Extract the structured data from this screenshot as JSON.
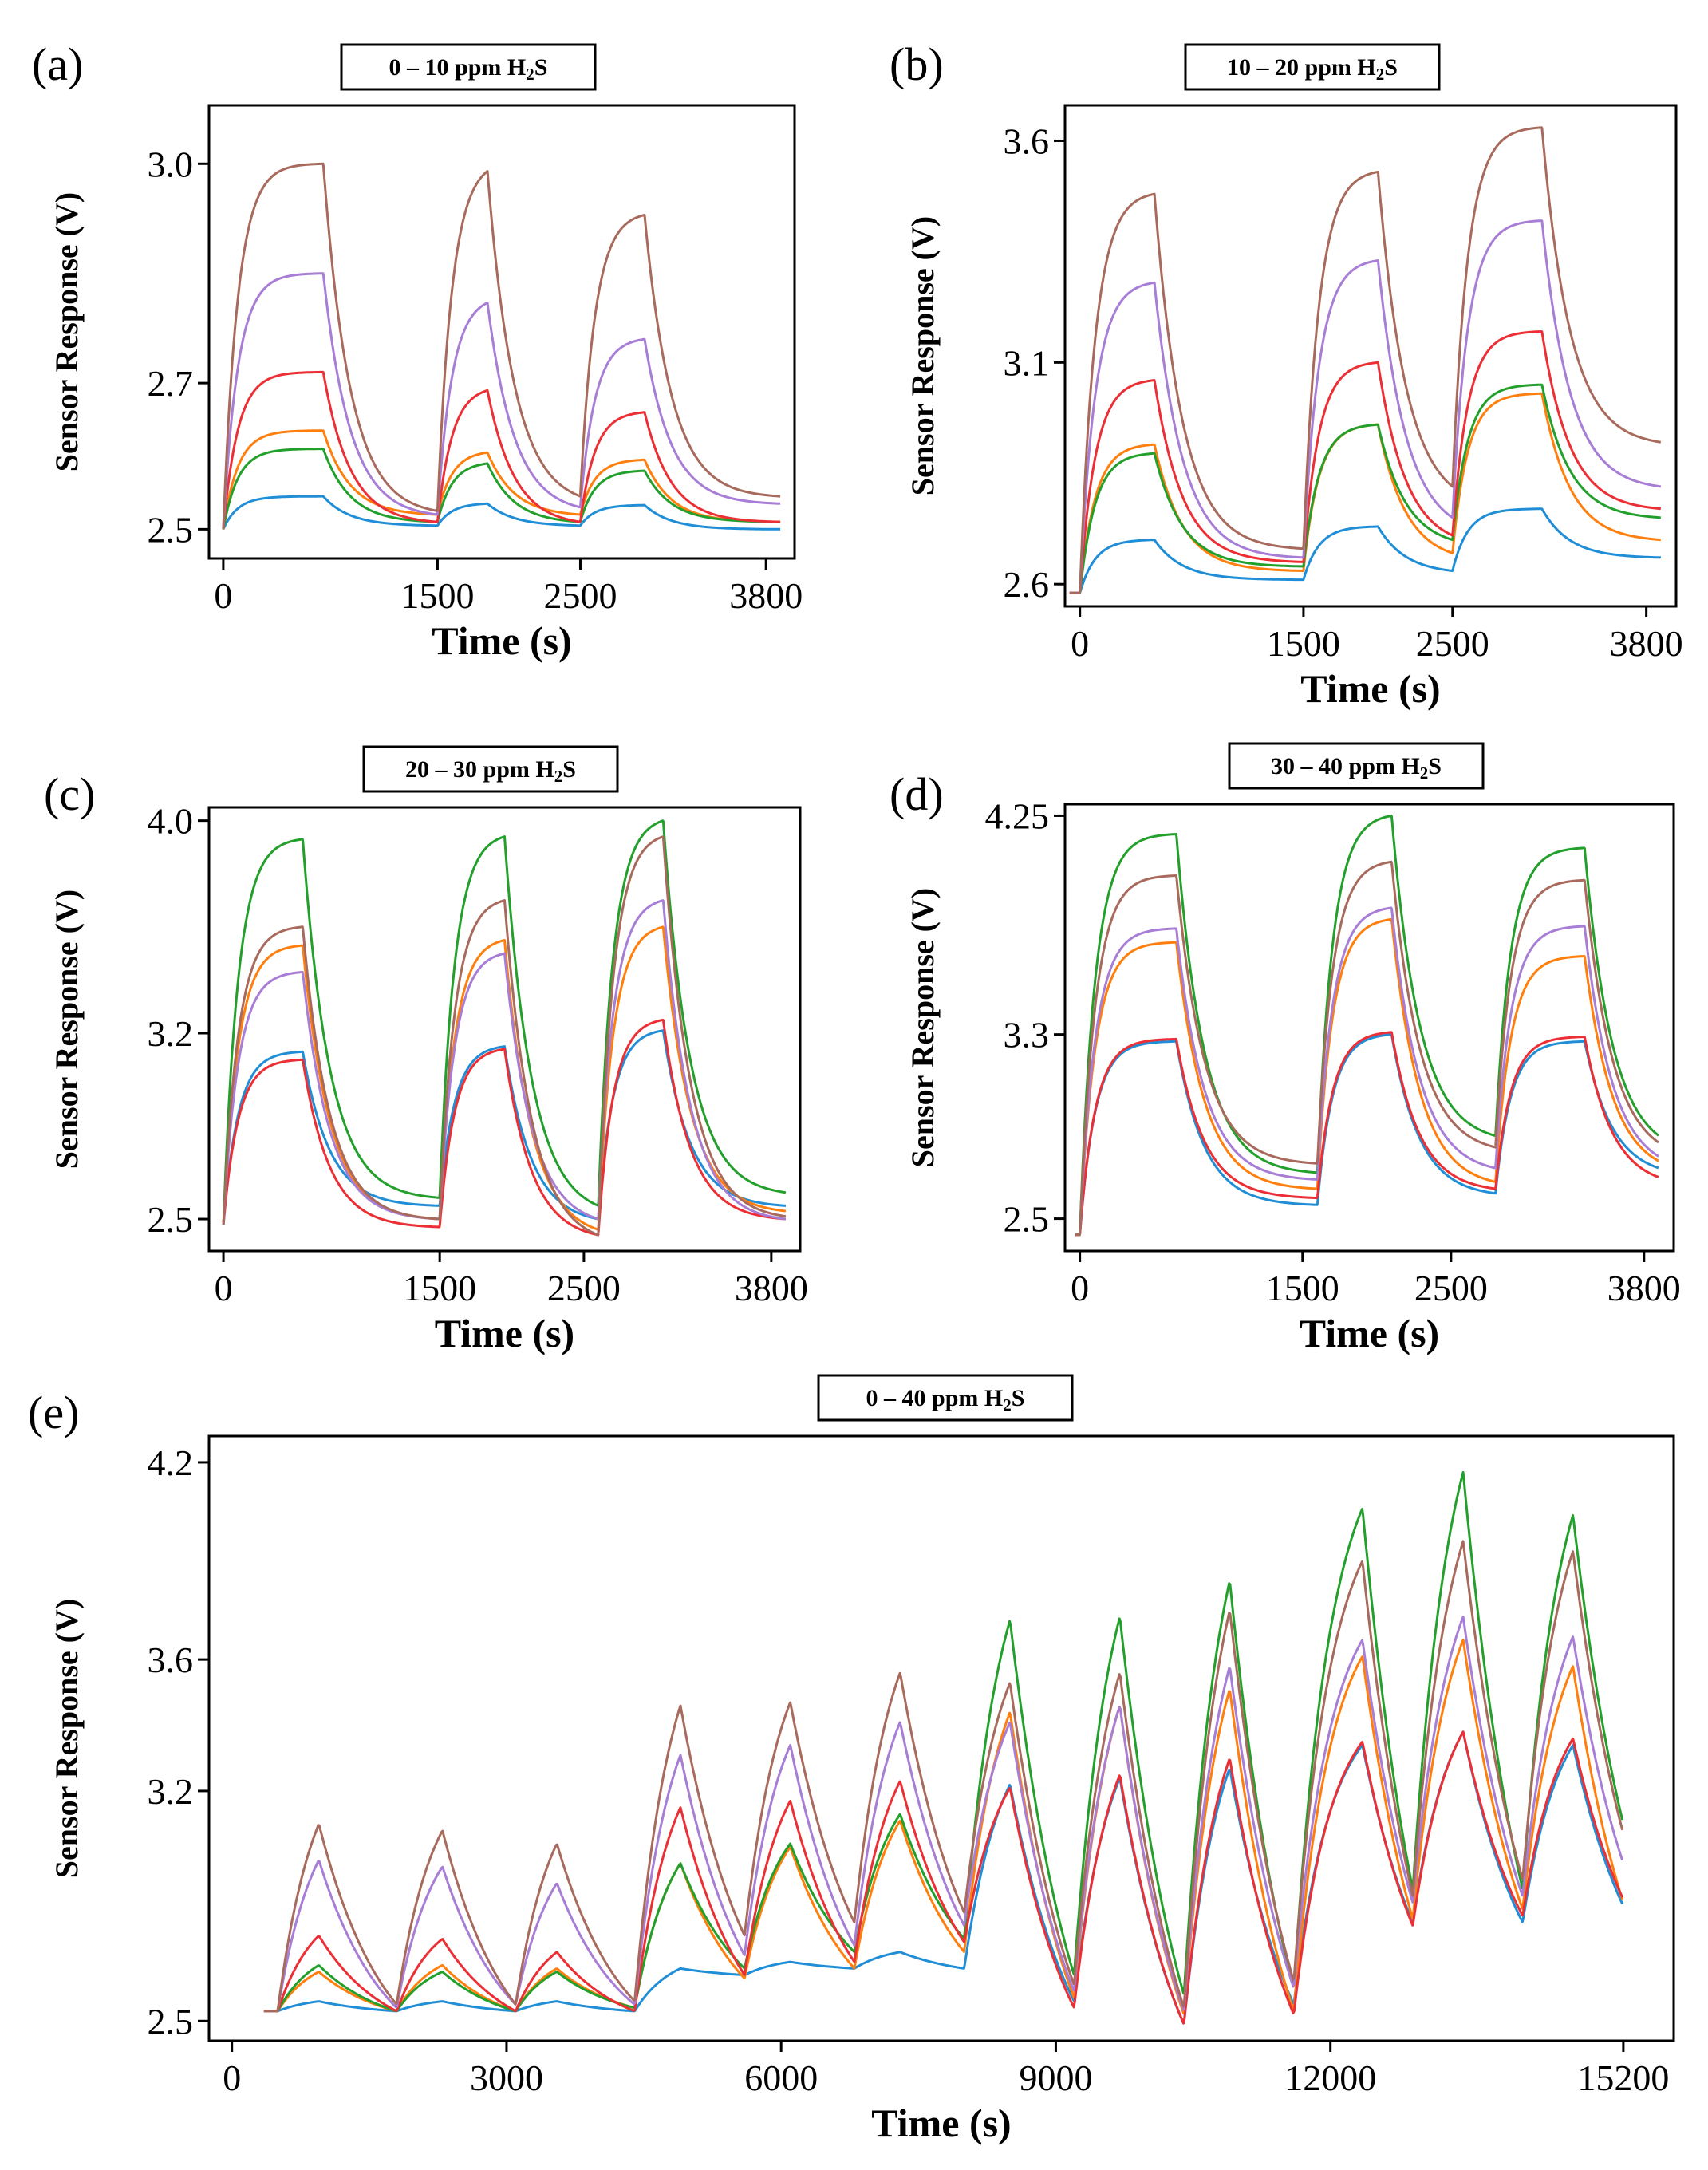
{
  "figure": {
    "palette": {
      "blue": "#1f8ed6",
      "orange": "#ff7f0e",
      "green": "#23a02c",
      "red": "#ec2f35",
      "purple": "#a77dd6",
      "brown": "#a86a5c"
    },
    "series_order": [
      "blue",
      "orange",
      "green",
      "red",
      "purple",
      "brown"
    ]
  },
  "chart_data": [
    {
      "id": "a",
      "panel_label": "(a)",
      "type": "line",
      "title_prefix": "0 – 10 ppm H",
      "title_sub": "2",
      "title_suffix": "S",
      "xlabel": "Time (s)",
      "ylabel": "Sensor Response (V)",
      "xlim": [
        -100,
        4000
      ],
      "ylim": [
        2.46,
        3.08
      ],
      "xticks": [
        0,
        1500,
        2500,
        3800
      ],
      "yticks": [
        2.5,
        2.7,
        3.0
      ],
      "baseline": 2.5,
      "t_start": 0,
      "t_end": 3900,
      "pulses": [
        [
          0,
          700
        ],
        [
          1500,
          1850
        ],
        [
          2500,
          2950
        ]
      ],
      "series": [
        {
          "name": "blue",
          "peaks": [
            2.545,
            2.535,
            2.533
          ],
          "post": [
            2.505,
            2.505,
            2.5
          ]
        },
        {
          "name": "orange",
          "peaks": [
            2.635,
            2.605,
            2.595
          ],
          "post": [
            2.52,
            2.52,
            2.51
          ]
        },
        {
          "name": "green",
          "peaks": [
            2.61,
            2.59,
            2.58
          ],
          "post": [
            2.51,
            2.51,
            2.51
          ]
        },
        {
          "name": "red",
          "peaks": [
            2.715,
            2.69,
            2.66
          ],
          "post": [
            2.51,
            2.51,
            2.51
          ]
        },
        {
          "name": "purple",
          "peaks": [
            2.85,
            2.81,
            2.76
          ],
          "post": [
            2.52,
            2.53,
            2.535
          ]
        },
        {
          "name": "brown",
          "peaks": [
            3.0,
            2.99,
            2.93
          ],
          "post": [
            2.525,
            2.545,
            2.545
          ]
        }
      ]
    },
    {
      "id": "b",
      "panel_label": "(b)",
      "type": "line",
      "title_prefix": "10 – 20 ppm H",
      "title_sub": "2",
      "title_suffix": "S",
      "xlabel": "Time (s)",
      "ylabel": "Sensor Response (V)",
      "xlim": [
        -100,
        4000
      ],
      "ylim": [
        2.55,
        3.68
      ],
      "xticks": [
        0,
        1500,
        2500,
        3800
      ],
      "yticks": [
        2.6,
        3.1,
        3.6
      ],
      "baseline": 2.58,
      "t_start": -70,
      "t_end": 3900,
      "pulses": [
        [
          0,
          500
        ],
        [
          1500,
          2000
        ],
        [
          2500,
          3100
        ]
      ],
      "series": [
        {
          "name": "blue",
          "peaks": [
            2.7,
            2.73,
            2.77
          ],
          "post": [
            2.61,
            2.63,
            2.66
          ]
        },
        {
          "name": "orange",
          "peaks": [
            2.915,
            2.96,
            3.03
          ],
          "post": [
            2.63,
            2.67,
            2.7
          ]
        },
        {
          "name": "green",
          "peaks": [
            2.895,
            2.96,
            3.05
          ],
          "post": [
            2.64,
            2.7,
            2.75
          ]
        },
        {
          "name": "red",
          "peaks": [
            3.06,
            3.1,
            3.17
          ],
          "post": [
            2.65,
            2.71,
            2.77
          ]
        },
        {
          "name": "purple",
          "peaks": [
            3.28,
            3.33,
            3.42
          ],
          "post": [
            2.66,
            2.75,
            2.82
          ]
        },
        {
          "name": "brown",
          "peaks": [
            3.48,
            3.53,
            3.63
          ],
          "post": [
            2.68,
            2.82,
            2.92
          ]
        }
      ]
    },
    {
      "id": "c",
      "panel_label": "(c)",
      "type": "line",
      "title_prefix": "20 – 30 ppm H",
      "title_sub": "2",
      "title_suffix": "S",
      "xlabel": "Time (s)",
      "ylabel": "Sensor Response (V)",
      "xlim": [
        -100,
        4000
      ],
      "ylim": [
        2.38,
        4.05
      ],
      "xticks": [
        0,
        1500,
        2500,
        3800
      ],
      "yticks": [
        2.5,
        3.2,
        4.0
      ],
      "baseline": 2.48,
      "t_start": 0,
      "t_end": 3900,
      "pulses": [
        [
          0,
          550
        ],
        [
          1500,
          1950
        ],
        [
          2600,
          3050
        ]
      ],
      "series": [
        {
          "name": "blue",
          "peaks": [
            3.13,
            3.15,
            3.21
          ],
          "post": [
            2.55,
            2.5,
            2.55
          ]
        },
        {
          "name": "orange",
          "peaks": [
            3.53,
            3.55,
            3.6
          ],
          "post": [
            2.5,
            2.46,
            2.53
          ]
        },
        {
          "name": "green",
          "peaks": [
            3.93,
            3.94,
            4.0
          ],
          "post": [
            2.58,
            2.55,
            2.6
          ]
        },
        {
          "name": "red",
          "peaks": [
            3.1,
            3.14,
            3.25
          ],
          "post": [
            2.47,
            2.44,
            2.5
          ]
        },
        {
          "name": "purple",
          "peaks": [
            3.43,
            3.5,
            3.7
          ],
          "post": [
            2.5,
            2.5,
            2.5
          ]
        },
        {
          "name": "brown",
          "peaks": [
            3.6,
            3.7,
            3.94
          ],
          "post": [
            2.5,
            2.44,
            2.51
          ]
        }
      ]
    },
    {
      "id": "d",
      "panel_label": "(d)",
      "type": "line",
      "title_prefix": "30 – 40 ppm H",
      "title_sub": "2",
      "title_suffix": "S",
      "xlabel": "Time (s)",
      "ylabel": "Sensor Response (V)",
      "xlim": [
        -100,
        4000
      ],
      "ylim": [
        2.36,
        4.3
      ],
      "xticks": [
        0,
        1500,
        2500,
        3800
      ],
      "yticks": [
        2.5,
        3.3,
        4.25
      ],
      "baseline": 2.43,
      "t_start": -30,
      "t_end": 3900,
      "pulses": [
        [
          0,
          650
        ],
        [
          1600,
          2100
        ],
        [
          2800,
          3400
        ]
      ],
      "series": [
        {
          "name": "blue",
          "peaks": [
            3.27,
            3.3,
            3.27
          ],
          "post": [
            2.56,
            2.61,
            2.72
          ]
        },
        {
          "name": "orange",
          "peaks": [
            3.7,
            3.8,
            3.64
          ],
          "post": [
            2.63,
            2.66,
            2.75
          ]
        },
        {
          "name": "green",
          "peaks": [
            4.17,
            4.25,
            4.11
          ],
          "post": [
            2.7,
            2.86,
            2.86
          ]
        },
        {
          "name": "red",
          "peaks": [
            3.28,
            3.31,
            3.29
          ],
          "post": [
            2.59,
            2.63,
            2.68
          ]
        },
        {
          "name": "purple",
          "peaks": [
            3.76,
            3.85,
            3.77
          ],
          "post": [
            2.67,
            2.72,
            2.77
          ]
        },
        {
          "name": "brown",
          "peaks": [
            3.99,
            4.05,
            3.97
          ],
          "post": [
            2.74,
            2.81,
            2.83
          ]
        }
      ]
    },
    {
      "id": "e",
      "panel_label": "(e)",
      "type": "line",
      "title_prefix": "0 – 40 ppm H",
      "title_sub": "2",
      "title_suffix": "S",
      "xlabel": "Time (s)",
      "ylabel": "Sensor Response (V)",
      "xlim": [
        -250,
        15750
      ],
      "ylim": [
        2.44,
        4.28
      ],
      "xticks": [
        0,
        3000,
        6000,
        9000,
        12000,
        15200
      ],
      "yticks": [
        2.5,
        3.2,
        3.6,
        4.2
      ],
      "baseline": 2.53,
      "t_start": 350,
      "t_end": 15200,
      "pulses": [
        [
          500,
          950
        ],
        [
          1800,
          2300
        ],
        [
          3100,
          3550
        ],
        [
          4400,
          4900
        ],
        [
          5600,
          6100
        ],
        [
          6800,
          7300
        ],
        [
          8000,
          8500
        ],
        [
          9200,
          9700
        ],
        [
          10400,
          10900
        ],
        [
          11600,
          12350
        ],
        [
          12900,
          13450
        ],
        [
          14100,
          14650
        ]
      ],
      "series": [
        {
          "name": "blue",
          "peaks": [
            2.56,
            2.56,
            2.56,
            2.66,
            2.68,
            2.71,
            3.22,
            3.24,
            3.27,
            3.34,
            3.38,
            3.34
          ],
          "post": [
            2.53,
            2.53,
            2.53,
            2.64,
            2.66,
            2.66,
            2.56,
            2.49,
            2.55,
            2.8,
            2.8,
            2.85
          ]
        },
        {
          "name": "orange",
          "peaks": [
            2.65,
            2.67,
            2.66,
            2.98,
            3.03,
            3.11,
            3.44,
            3.46,
            3.51,
            3.61,
            3.66,
            3.58
          ],
          "post": [
            2.53,
            2.53,
            2.54,
            2.63,
            2.66,
            2.71,
            2.57,
            2.52,
            2.53,
            2.81,
            2.84,
            2.86
          ]
        },
        {
          "name": "green",
          "peaks": [
            2.67,
            2.65,
            2.65,
            2.98,
            3.04,
            3.13,
            3.72,
            3.73,
            3.84,
            4.06,
            4.17,
            4.04
          ],
          "post": [
            2.53,
            2.53,
            2.54,
            2.66,
            2.71,
            2.75,
            2.64,
            2.58,
            2.6,
            2.9,
            2.9,
            3.1
          ]
        },
        {
          "name": "red",
          "peaks": [
            2.76,
            2.75,
            2.71,
            3.15,
            3.17,
            3.23,
            3.21,
            3.25,
            3.3,
            3.35,
            3.38,
            3.36
          ],
          "post": [
            2.53,
            2.53,
            2.53,
            2.64,
            2.68,
            2.74,
            2.54,
            2.49,
            2.52,
            2.79,
            2.82,
            2.87
          ]
        },
        {
          "name": "purple",
          "peaks": [
            2.99,
            2.97,
            2.92,
            3.31,
            3.34,
            3.41,
            3.41,
            3.46,
            3.58,
            3.66,
            3.73,
            3.67
          ],
          "post": [
            2.54,
            2.55,
            2.55,
            2.7,
            2.73,
            2.79,
            2.59,
            2.53,
            2.6,
            2.86,
            2.88,
            2.98
          ]
        },
        {
          "name": "brown",
          "peaks": [
            3.1,
            3.08,
            3.04,
            3.46,
            3.47,
            3.56,
            3.53,
            3.56,
            3.75,
            3.9,
            3.96,
            3.93
          ],
          "post": [
            2.55,
            2.55,
            2.56,
            2.76,
            2.8,
            2.83,
            2.61,
            2.54,
            2.62,
            2.88,
            2.93,
            3.07
          ]
        }
      ]
    }
  ]
}
